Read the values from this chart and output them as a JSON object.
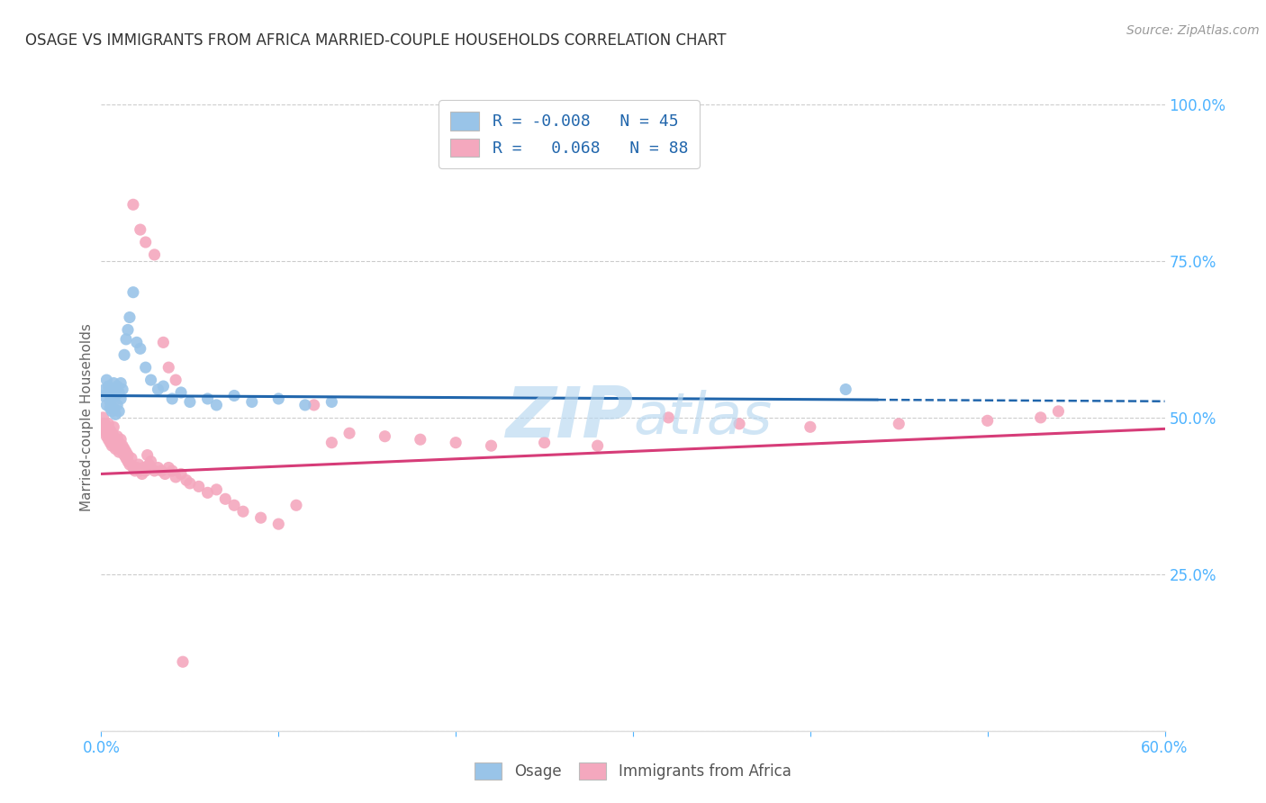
{
  "title": "OSAGE VS IMMIGRANTS FROM AFRICA MARRIED-COUPLE HOUSEHOLDS CORRELATION CHART",
  "source": "Source: ZipAtlas.com",
  "ylabel": "Married-couple Households",
  "x_min": 0.0,
  "x_max": 0.6,
  "y_min": 0.0,
  "y_max": 1.0,
  "grid_color": "#cccccc",
  "background_color": "#ffffff",
  "osage_color": "#99c4e8",
  "africa_color": "#f4a8be",
  "osage_line_color": "#2166ac",
  "africa_line_color": "#d63c78",
  "osage_R": -0.008,
  "osage_N": 45,
  "africa_R": 0.068,
  "africa_N": 88,
  "tick_color": "#4db3ff",
  "watermark": "ZIPAtlas",
  "watermark_color": "#b8d8f0",
  "bottom_label_osage": "Osage",
  "bottom_label_africa": "Immigrants from Africa",
  "osage_x": [
    0.001,
    0.002,
    0.003,
    0.003,
    0.004,
    0.004,
    0.005,
    0.005,
    0.005,
    0.006,
    0.006,
    0.006,
    0.007,
    0.007,
    0.008,
    0.008,
    0.009,
    0.009,
    0.01,
    0.01,
    0.011,
    0.011,
    0.012,
    0.013,
    0.014,
    0.015,
    0.016,
    0.018,
    0.02,
    0.022,
    0.025,
    0.028,
    0.032,
    0.035,
    0.04,
    0.045,
    0.05,
    0.06,
    0.065,
    0.075,
    0.085,
    0.1,
    0.115,
    0.13,
    0.42
  ],
  "osage_y": [
    0.535,
    0.545,
    0.56,
    0.52,
    0.54,
    0.55,
    0.515,
    0.525,
    0.535,
    0.51,
    0.53,
    0.545,
    0.515,
    0.555,
    0.505,
    0.535,
    0.52,
    0.55,
    0.51,
    0.54,
    0.53,
    0.555,
    0.545,
    0.6,
    0.625,
    0.64,
    0.66,
    0.7,
    0.62,
    0.61,
    0.58,
    0.56,
    0.545,
    0.55,
    0.53,
    0.54,
    0.525,
    0.53,
    0.52,
    0.535,
    0.525,
    0.53,
    0.52,
    0.525,
    0.545
  ],
  "africa_x": [
    0.001,
    0.001,
    0.002,
    0.002,
    0.003,
    0.003,
    0.004,
    0.004,
    0.005,
    0.005,
    0.005,
    0.006,
    0.006,
    0.007,
    0.007,
    0.007,
    0.008,
    0.008,
    0.009,
    0.009,
    0.01,
    0.01,
    0.011,
    0.011,
    0.012,
    0.012,
    0.013,
    0.013,
    0.014,
    0.014,
    0.015,
    0.015,
    0.016,
    0.017,
    0.018,
    0.019,
    0.02,
    0.021,
    0.022,
    0.023,
    0.024,
    0.025,
    0.026,
    0.027,
    0.028,
    0.03,
    0.032,
    0.034,
    0.036,
    0.038,
    0.04,
    0.042,
    0.045,
    0.048,
    0.05,
    0.055,
    0.06,
    0.065,
    0.07,
    0.075,
    0.08,
    0.09,
    0.1,
    0.11,
    0.12,
    0.13,
    0.14,
    0.16,
    0.18,
    0.2,
    0.22,
    0.25,
    0.28,
    0.32,
    0.36,
    0.4,
    0.45,
    0.5,
    0.53,
    0.54,
    0.018,
    0.022,
    0.025,
    0.03,
    0.035,
    0.038,
    0.042,
    0.046
  ],
  "africa_y": [
    0.5,
    0.485,
    0.49,
    0.48,
    0.475,
    0.47,
    0.465,
    0.49,
    0.46,
    0.47,
    0.48,
    0.455,
    0.475,
    0.46,
    0.47,
    0.485,
    0.45,
    0.465,
    0.455,
    0.47,
    0.445,
    0.46,
    0.45,
    0.465,
    0.445,
    0.455,
    0.44,
    0.45,
    0.435,
    0.445,
    0.43,
    0.44,
    0.425,
    0.435,
    0.42,
    0.415,
    0.42,
    0.425,
    0.415,
    0.41,
    0.42,
    0.415,
    0.44,
    0.425,
    0.43,
    0.415,
    0.42,
    0.415,
    0.41,
    0.42,
    0.415,
    0.405,
    0.41,
    0.4,
    0.395,
    0.39,
    0.38,
    0.385,
    0.37,
    0.36,
    0.35,
    0.34,
    0.33,
    0.36,
    0.52,
    0.46,
    0.475,
    0.47,
    0.465,
    0.46,
    0.455,
    0.46,
    0.455,
    0.5,
    0.49,
    0.485,
    0.49,
    0.495,
    0.5,
    0.51,
    0.84,
    0.8,
    0.78,
    0.76,
    0.62,
    0.58,
    0.56,
    0.11
  ]
}
